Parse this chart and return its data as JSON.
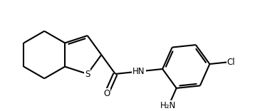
{
  "bg_color": "#ffffff",
  "line_color": "#000000",
  "lw": 1.5,
  "figsize": [
    3.65,
    1.56
  ],
  "dpi": 100,
  "xlim": [
    0,
    7.3
  ],
  "ylim": [
    0,
    3.2
  ],
  "bl": 0.72
}
